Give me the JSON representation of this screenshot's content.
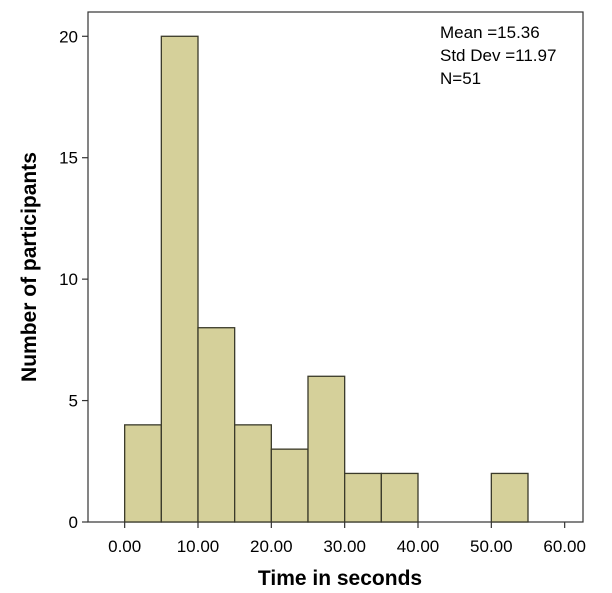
{
  "chart_data": {
    "type": "bar",
    "subtype": "histogram",
    "xlabel": "Time in seconds",
    "ylabel": "Number of participants",
    "xlim": [
      -5,
      62.5
    ],
    "ylim": [
      0,
      21
    ],
    "bin_width": 5,
    "bins": [
      {
        "start": 0,
        "end": 5,
        "count": 4
      },
      {
        "start": 5,
        "end": 10,
        "count": 20
      },
      {
        "start": 10,
        "end": 15,
        "count": 8
      },
      {
        "start": 15,
        "end": 20,
        "count": 4
      },
      {
        "start": 20,
        "end": 25,
        "count": 3
      },
      {
        "start": 25,
        "end": 30,
        "count": 6
      },
      {
        "start": 30,
        "end": 35,
        "count": 2
      },
      {
        "start": 35,
        "end": 40,
        "count": 2
      },
      {
        "start": 50,
        "end": 55,
        "count": 2
      }
    ],
    "x_ticks": [
      0,
      10,
      20,
      30,
      40,
      50,
      60
    ],
    "x_tick_labels": [
      "0.00",
      "10.00",
      "20.00",
      "30.00",
      "40.00",
      "50.00",
      "60.00"
    ],
    "y_ticks": [
      0,
      5,
      10,
      15,
      20
    ],
    "y_tick_labels": [
      "0",
      "5",
      "10",
      "15",
      "20"
    ],
    "annotations": [
      "Mean =15.36",
      "Std Dev =11.97",
      "N=51"
    ],
    "bar_color": "#d5d09a",
    "bar_edge_color": "#3a3a2a",
    "grid": false,
    "legend": "none"
  }
}
